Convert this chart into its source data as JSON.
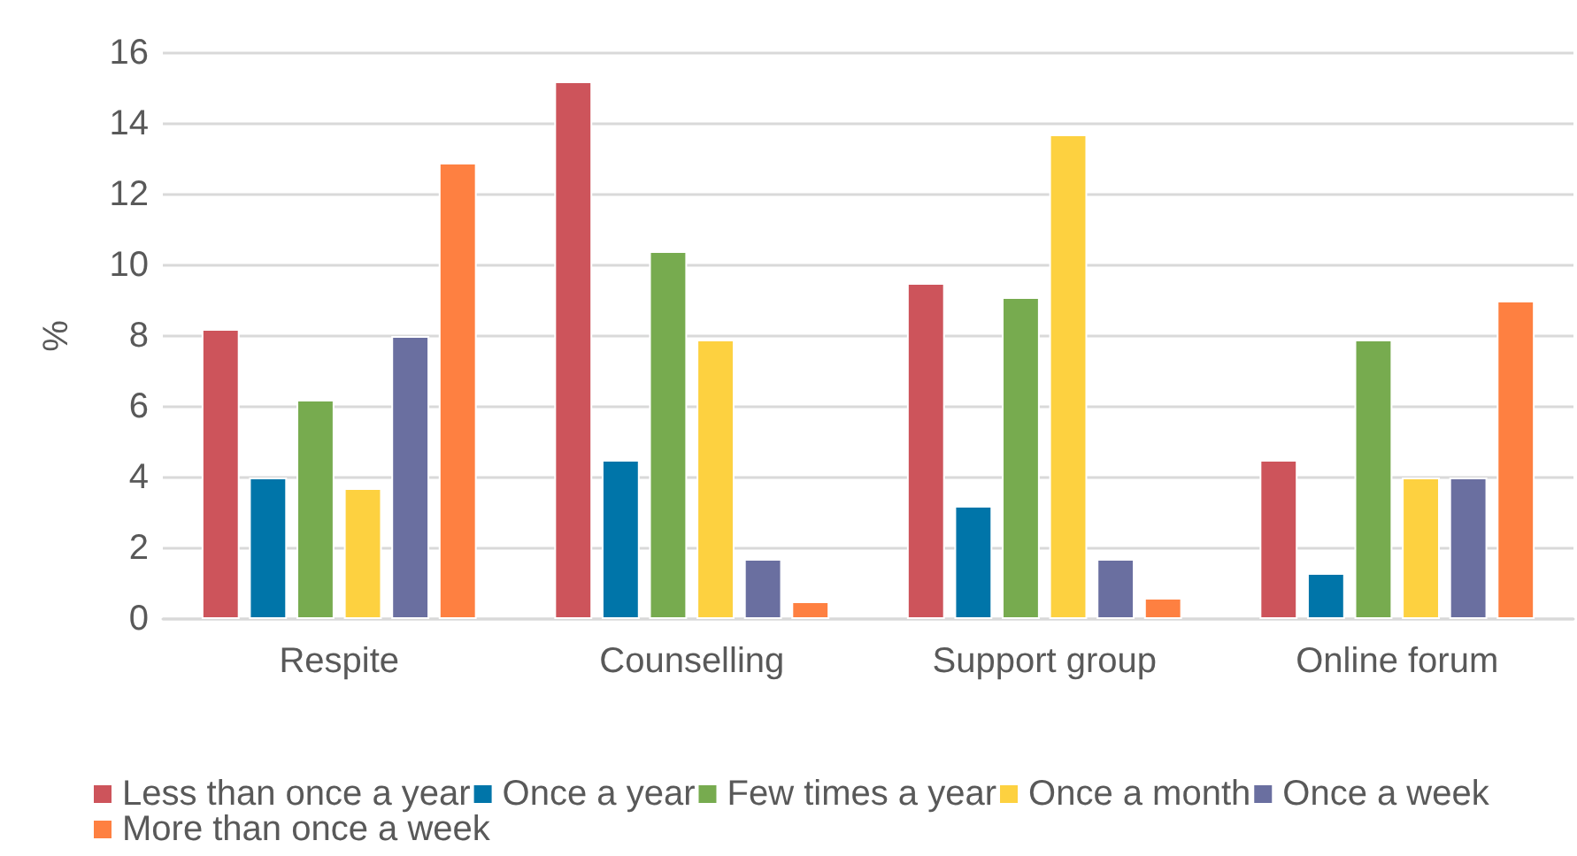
{
  "chart_data": {
    "type": "bar",
    "ylabel": "%",
    "categories": [
      "Respite",
      "Counselling",
      "Support group",
      "Online forum"
    ],
    "series": [
      {
        "name": "Less than once a year",
        "color": "#cd545b",
        "values": [
          8.2,
          15.2,
          9.5,
          4.5
        ]
      },
      {
        "name": "Once a year",
        "color": "#0075a9",
        "values": [
          4.0,
          4.5,
          3.2,
          1.3
        ]
      },
      {
        "name": "Few times a year",
        "color": "#77ab4f",
        "values": [
          6.2,
          10.4,
          9.1,
          7.9
        ]
      },
      {
        "name": "Once a month",
        "color": "#fdd140",
        "values": [
          3.7,
          7.9,
          13.7,
          4.0
        ]
      },
      {
        "name": "Once a week",
        "color": "#6a6fa0",
        "values": [
          8.0,
          1.7,
          1.7,
          4.0
        ]
      },
      {
        "name": "More than once a week",
        "color": "#fe8041",
        "values": [
          12.9,
          0.5,
          0.6,
          9.0
        ]
      }
    ],
    "ylim": [
      0,
      16
    ],
    "yticks": [
      0,
      2,
      4,
      6,
      8,
      10,
      12,
      14,
      16
    ],
    "grid": "y",
    "legend": "bottom"
  }
}
